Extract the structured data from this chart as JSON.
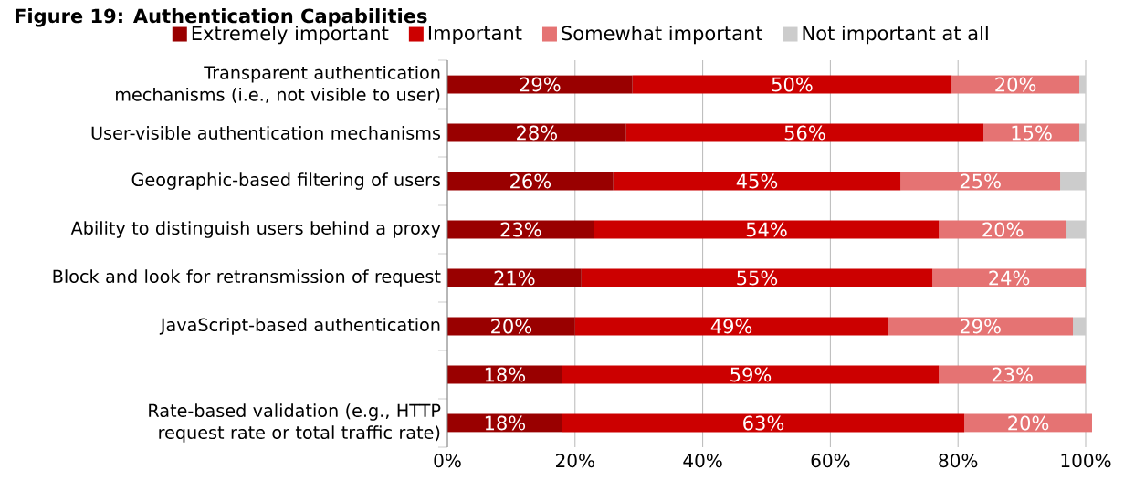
{
  "chart_data": {
    "type": "bar",
    "orientation": "horizontal",
    "stacked": true,
    "title": "Figure 19: Authentication Capabilities",
    "categories": [
      "Transparent authentication mechanisms (i.e., not visible to user)",
      "User-visible authentication mechanisms",
      "Geographic-based filtering of users",
      "Ability to distinguish users behind a proxy",
      "Block and look for retransmission of request",
      "JavaScript-based authentication",
      null,
      "Rate-based validation (e.g., HTTP request rate or total traffic rate)"
    ],
    "series": [
      {
        "name": "Extremely important",
        "color": "#990000",
        "values": [
          29,
          28,
          26,
          23,
          21,
          20,
          18,
          18
        ],
        "value_labels": [
          "29%",
          "28%",
          "26%",
          "23%",
          "21%",
          "20%",
          "18%",
          "18%"
        ]
      },
      {
        "name": "Important",
        "color": "#cc0000",
        "values": [
          50,
          56,
          45,
          54,
          55,
          49,
          59,
          63
        ],
        "value_labels": [
          "50%",
          "56%",
          "45%",
          "54%",
          "55%",
          "49%",
          "59%",
          "63%"
        ]
      },
      {
        "name": "Somewhat important",
        "color": "#e57373",
        "values": [
          20,
          15,
          25,
          20,
          24,
          29,
          23,
          20
        ],
        "value_labels": [
          "20%",
          "15%",
          "25%",
          "20%",
          "24%",
          "29%",
          "23%",
          "20%"
        ]
      },
      {
        "name": "Not important at all",
        "color": "#cccccc",
        "values": [
          1,
          1,
          4,
          3,
          0,
          2,
          0,
          0
        ]
      }
    ],
    "xlim": [
      0,
      101
    ],
    "xticks": [
      {
        "value": 0,
        "label": "0%"
      },
      {
        "value": 20,
        "label": "20%"
      },
      {
        "value": 40,
        "label": "40%"
      },
      {
        "value": 60,
        "label": "60%"
      },
      {
        "value": 80,
        "label": "80%"
      },
      {
        "value": 100,
        "label": "100%"
      }
    ],
    "grid": "x",
    "legend": "top"
  }
}
